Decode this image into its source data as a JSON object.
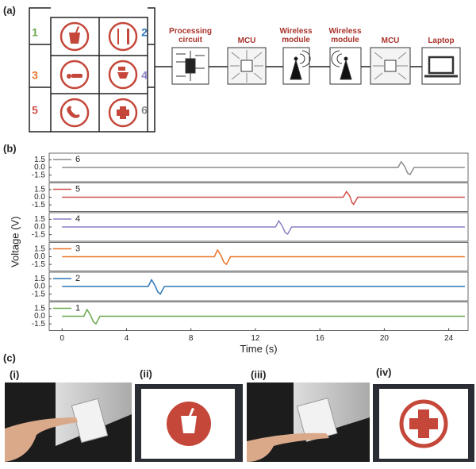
{
  "panel_labels": [
    "(a)",
    "(b)",
    "(c)"
  ],
  "blocks": [
    "Processing circuit",
    "MCU",
    "Wireless module",
    "Wireless module",
    "MCU",
    "Laptop"
  ],
  "photo_labels": [
    "(i)",
    "(ii)",
    "(iii)",
    "(iv)"
  ],
  "chart_data": {
    "type": "line",
    "xlabel": "Time (s)",
    "ylabel": "Voltage (V)",
    "xlim": [
      -0.8,
      25.2
    ],
    "xticks": [
      0,
      4,
      8,
      12,
      16,
      20,
      24
    ],
    "ylim": [
      -2.8,
      2.8
    ],
    "yticks": [
      1.5,
      {
        "value": 0,
        "label": "0.0"
      },
      -1.5
    ],
    "series": [
      {
        "name": "1",
        "color": "#6aa84f",
        "x": [
          0,
          1.35,
          1.55,
          1.75,
          1.95,
          2.1,
          2.35,
          25
        ],
        "values": [
          0,
          0,
          1.3,
          0.3,
          -1.1,
          -1.5,
          0,
          0
        ]
      },
      {
        "name": "2",
        "color": "#2e75b6",
        "x": [
          0,
          5.35,
          5.55,
          5.75,
          5.95,
          6.1,
          6.35,
          25
        ],
        "values": [
          0,
          0,
          1.3,
          0.3,
          -1.1,
          -1.5,
          0,
          0
        ]
      },
      {
        "name": "3",
        "color": "#e8742a",
        "x": [
          0,
          9.45,
          9.65,
          9.85,
          10.05,
          10.2,
          10.45,
          25
        ],
        "values": [
          0,
          0,
          1.3,
          0.3,
          -1.1,
          -1.5,
          0,
          0
        ]
      },
      {
        "name": "4",
        "color": "#8a80c4",
        "x": [
          0,
          13.25,
          13.45,
          13.65,
          13.85,
          14.0,
          14.25,
          25
        ],
        "values": [
          0,
          0,
          1.2,
          0.3,
          -1.1,
          -1.4,
          0,
          0
        ]
      },
      {
        "name": "5",
        "color": "#d0504a",
        "x": [
          0,
          17.45,
          17.65,
          17.85,
          18.0,
          18.1,
          18.35,
          25
        ],
        "values": [
          0,
          0,
          1.1,
          0.3,
          -1.1,
          -1.4,
          0,
          0
        ]
      },
      {
        "name": "6",
        "color": "#8c8c8c",
        "x": [
          0,
          20.85,
          21.05,
          21.25,
          21.45,
          21.6,
          21.85,
          25
        ],
        "values": [
          0,
          0,
          1.1,
          0.3,
          -1.1,
          -1.4,
          0,
          0
        ]
      }
    ]
  }
}
